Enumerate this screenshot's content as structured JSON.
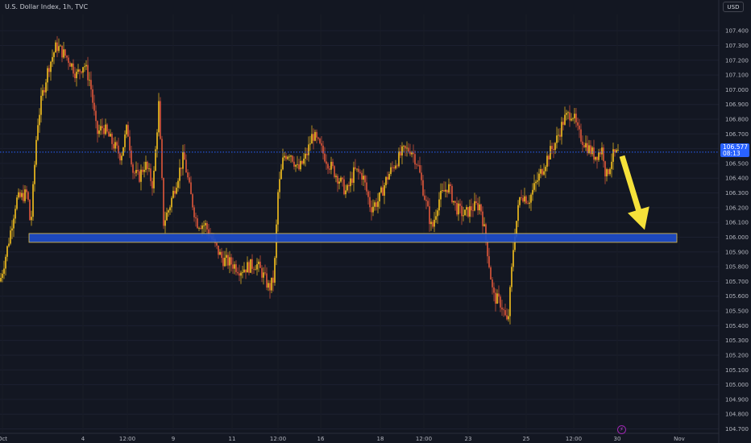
{
  "header": {
    "title": "U.S. Dollar Index, 1h, TVC",
    "currency": "USD"
  },
  "current_price": {
    "value": "106.577",
    "countdown": "08:13",
    "price": 106.577
  },
  "colors": {
    "background": "#131722",
    "up": "#f7c21e",
    "down": "#e0573a",
    "zone_fill": "#1e4dc9",
    "zone_border": "#e6c34a",
    "arrow": "#f5e13a",
    "price_line": "#2962ff",
    "axis_text": "#b2b5be"
  },
  "icons": {
    "event": "lightning-icon"
  },
  "chart_data": {
    "type": "candlestick",
    "title": "U.S. Dollar Index, 1h, TVC",
    "ylim": [
      104.67,
      107.51
    ],
    "y_ticks": [
      "107.400",
      "107.300",
      "107.200",
      "107.100",
      "107.000",
      "106.900",
      "106.800",
      "106.700",
      "106.600",
      "106.500",
      "106.400",
      "106.300",
      "106.200",
      "106.100",
      "106.000",
      "105.900",
      "105.800",
      "105.700",
      "105.600",
      "105.500",
      "105.400",
      "105.300",
      "105.200",
      "105.100",
      "105.000",
      "104.900",
      "104.800",
      "104.700"
    ],
    "x_ticks": [
      "Oct",
      "4",
      "12:00",
      "9",
      "11",
      "12:00",
      "16",
      "18",
      "12:00",
      "23",
      "25",
      "12:00",
      "30",
      "Nov"
    ],
    "x_tick_index": [
      3,
      103,
      158,
      215,
      288,
      345,
      398,
      472,
      526,
      581,
      653,
      712,
      766,
      843
    ],
    "close_path": [
      [
        0,
        105.7
      ],
      [
        10,
        105.95
      ],
      [
        20,
        106.25
      ],
      [
        34,
        106.3
      ],
      [
        38,
        106.06
      ],
      [
        46,
        106.75
      ],
      [
        52,
        106.95
      ],
      [
        60,
        107.15
      ],
      [
        70,
        107.3
      ],
      [
        78,
        107.25
      ],
      [
        86,
        107.2
      ],
      [
        95,
        107.1
      ],
      [
        104,
        107.18
      ],
      [
        112,
        107.05
      ],
      [
        120,
        106.7
      ],
      [
        128,
        106.75
      ],
      [
        138,
        106.65
      ],
      [
        150,
        106.55
      ],
      [
        158,
        106.75
      ],
      [
        165,
        106.45
      ],
      [
        172,
        106.4
      ],
      [
        180,
        106.5
      ],
      [
        190,
        106.35
      ],
      [
        197,
        106.9
      ],
      [
        203,
        106.1
      ],
      [
        210,
        106.2
      ],
      [
        220,
        106.4
      ],
      [
        228,
        106.55
      ],
      [
        236,
        106.3
      ],
      [
        244,
        106.1
      ],
      [
        255,
        106.08
      ],
      [
        266,
        105.95
      ],
      [
        276,
        105.85
      ],
      [
        288,
        105.82
      ],
      [
        298,
        105.78
      ],
      [
        308,
        105.8
      ],
      [
        318,
        105.82
      ],
      [
        326,
        105.75
      ],
      [
        334,
        105.65
      ],
      [
        340,
        105.72
      ],
      [
        345,
        106.3
      ],
      [
        352,
        106.55
      ],
      [
        360,
        106.58
      ],
      [
        370,
        106.45
      ],
      [
        380,
        106.55
      ],
      [
        388,
        106.7
      ],
      [
        398,
        106.6
      ],
      [
        408,
        106.5
      ],
      [
        420,
        106.4
      ],
      [
        430,
        106.3
      ],
      [
        440,
        106.45
      ],
      [
        450,
        106.42
      ],
      [
        460,
        106.2
      ],
      [
        470,
        106.25
      ],
      [
        480,
        106.4
      ],
      [
        490,
        106.5
      ],
      [
        500,
        106.58
      ],
      [
        510,
        106.6
      ],
      [
        518,
        106.5
      ],
      [
        526,
        106.3
      ],
      [
        536,
        106.05
      ],
      [
        544,
        106.25
      ],
      [
        556,
        106.35
      ],
      [
        566,
        106.2
      ],
      [
        576,
        106.15
      ],
      [
        586,
        106.2
      ],
      [
        596,
        106.22
      ],
      [
        604,
        105.95
      ],
      [
        612,
        105.6
      ],
      [
        622,
        105.55
      ],
      [
        630,
        105.4
      ],
      [
        638,
        106.0
      ],
      [
        646,
        106.3
      ],
      [
        656,
        106.25
      ],
      [
        668,
        106.4
      ],
      [
        680,
        106.55
      ],
      [
        690,
        106.65
      ],
      [
        700,
        106.8
      ],
      [
        710,
        106.85
      ],
      [
        718,
        106.7
      ],
      [
        728,
        106.62
      ],
      [
        738,
        106.55
      ],
      [
        748,
        106.6
      ],
      [
        752,
        106.4
      ],
      [
        760,
        106.55
      ],
      [
        768,
        106.57
      ]
    ],
    "zone": {
      "x_from_index": 36,
      "x_to_index": 840,
      "y_low": 105.965,
      "y_high": 106.025
    },
    "arrow": {
      "from": [
        772,
        106.55
      ],
      "to": [
        800,
        106.05
      ]
    }
  }
}
